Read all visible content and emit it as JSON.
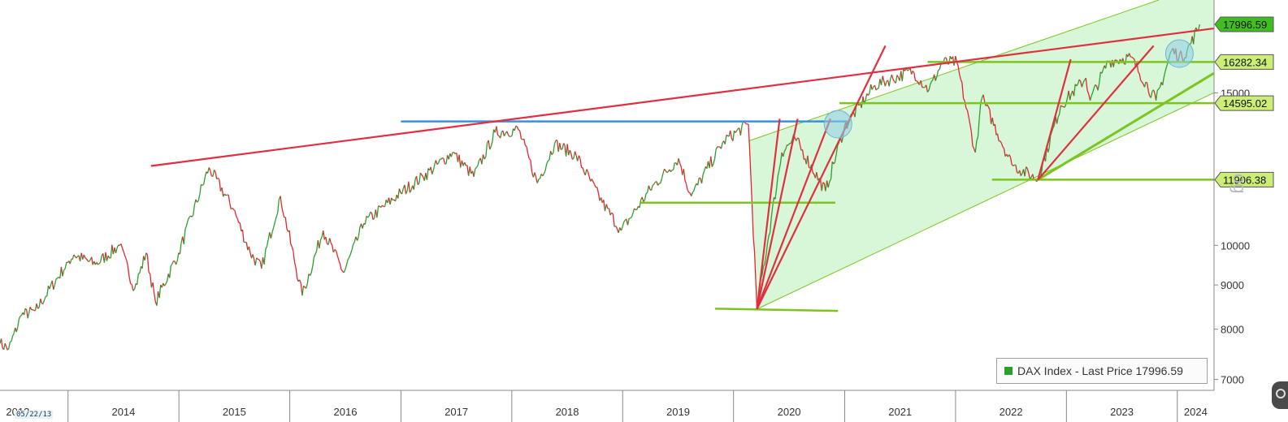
{
  "chart_data": {
    "type": "line",
    "title": "",
    "series": [
      {
        "name": "DAX Index - Last Price",
        "last_value": 17996.59,
        "points": [
          [
            "2013-05-22",
            7700
          ],
          [
            "2013-06-20",
            7600
          ],
          [
            "2013-08-01",
            8300
          ],
          [
            "2013-09-15",
            8400
          ],
          [
            "2013-12-31",
            9550
          ],
          [
            "2014-01-20",
            9750
          ],
          [
            "2014-04-01",
            9500
          ],
          [
            "2014-06-20",
            10000
          ],
          [
            "2014-08-08",
            8900
          ],
          [
            "2014-09-15",
            9800
          ],
          [
            "2014-10-16",
            8600
          ],
          [
            "2014-12-31",
            9800
          ],
          [
            "2015-04-10",
            12300
          ],
          [
            "2015-06-30",
            11000
          ],
          [
            "2015-08-24",
            9800
          ],
          [
            "2015-09-30",
            9400
          ],
          [
            "2015-12-01",
            11400
          ],
          [
            "2016-02-11",
            8750
          ],
          [
            "2016-04-20",
            10400
          ],
          [
            "2016-06-27",
            9300
          ],
          [
            "2016-09-01",
            10600
          ],
          [
            "2016-12-31",
            11500
          ],
          [
            "2017-03-15",
            12000
          ],
          [
            "2017-06-20",
            12800
          ],
          [
            "2017-08-29",
            12000
          ],
          [
            "2017-11-07",
            13500
          ],
          [
            "2018-01-23",
            13600
          ],
          [
            "2018-03-26",
            11800
          ],
          [
            "2018-05-22",
            13100
          ],
          [
            "2018-08-01",
            12700
          ],
          [
            "2018-10-26",
            11200
          ],
          [
            "2018-12-27",
            10400
          ],
          [
            "2019-04-01",
            11600
          ],
          [
            "2019-07-04",
            12600
          ],
          [
            "2019-08-15",
            11400
          ],
          [
            "2019-11-30",
            13200
          ],
          [
            "2020-02-19",
            13800
          ],
          [
            "2020-03-18",
            8440
          ],
          [
            "2020-06-08",
            12800
          ],
          [
            "2020-07-21",
            13300
          ],
          [
            "2020-10-30",
            11550
          ],
          [
            "2020-12-31",
            13700
          ],
          [
            "2021-04-10",
            15300
          ],
          [
            "2021-08-13",
            15900
          ],
          [
            "2021-10-05",
            15100
          ],
          [
            "2021-11-18",
            16250
          ],
          [
            "2022-01-05",
            16280
          ],
          [
            "2022-03-07",
            12800
          ],
          [
            "2022-03-29",
            14800
          ],
          [
            "2022-07-05",
            12400
          ],
          [
            "2022-09-29",
            11900
          ],
          [
            "2022-12-13",
            14500
          ],
          [
            "2023-03-06",
            15600
          ],
          [
            "2023-03-20",
            14700
          ],
          [
            "2023-05-19",
            16300
          ],
          [
            "2023-07-31",
            16500
          ],
          [
            "2023-10-23",
            14700
          ],
          [
            "2023-12-14",
            16800
          ],
          [
            "2024-01-17",
            16450
          ],
          [
            "2024-02-15",
            17100
          ],
          [
            "2024-03-15",
            17996.59
          ]
        ]
      }
    ],
    "x_ticks": [
      "2014",
      "2015",
      "2016",
      "2017",
      "2018",
      "2019",
      "2020",
      "2021",
      "2022",
      "2023",
      "2024"
    ],
    "y_ticks": [
      7000,
      8000,
      9000,
      10000,
      15000
    ],
    "y_scale": "log",
    "ylim": [
      6800,
      19200
    ],
    "xlim": [
      "2013-05-22",
      "2024-05-01"
    ],
    "start_date_label": "05/22/13",
    "price_tags": [
      {
        "value": 17996.59,
        "label": "17996.59",
        "style": "dark"
      },
      {
        "value": 16282.34,
        "label": "16282.34",
        "style": "light"
      },
      {
        "value": 14595.02,
        "label": "14595.02",
        "style": "light"
      },
      {
        "value": 11906.38,
        "label": "11906.38",
        "style": "light"
      }
    ],
    "annotations": {
      "red_resistance": [
        [
          "2014-10-01",
          12350
        ],
        [
          "2024-04-30",
          17800
        ]
      ],
      "blue_horizontal": [
        [
          "2017-01-01",
          13900
        ],
        [
          "2021-01-10",
          13900
        ]
      ],
      "green_horizontals": [
        [
          [
            "2019-03-01",
            11200
          ],
          [
            "2020-12-01",
            11200
          ]
        ],
        [
          [
            "2019-11-01",
            8450
          ],
          [
            "2020-12-10",
            8400
          ]
        ],
        [
          [
            "2021-10-01",
            16282.34
          ],
          [
            "2024-04-30",
            16282.34
          ]
        ],
        [
          [
            "2020-12-15",
            14595.02
          ],
          [
            "2024-04-30",
            14595.02
          ]
        ],
        [
          [
            "2022-05-01",
            11906.38
          ],
          [
            "2024-04-30",
            11906.38
          ]
        ]
      ],
      "channel_upper": [
        [
          "2020-02-20",
          13200
        ],
        [
          "2023-11-01",
          19200
        ]
      ],
      "channel_lower": [
        [
          "2020-03-18",
          8440
        ],
        [
          "2024-04-30",
          15000
        ]
      ],
      "red_fans": [
        [
          [
            "2020-03-18",
            8440
          ],
          [
            "2020-06-01",
            14000
          ]
        ],
        [
          [
            "2020-03-18",
            8440
          ],
          [
            "2020-07-30",
            14000
          ]
        ],
        [
          [
            "2020-03-18",
            8440
          ],
          [
            "2020-11-15",
            14000
          ]
        ],
        [
          [
            "2020-03-18",
            8440
          ],
          [
            "2021-05-15",
            17000
          ]
        ],
        [
          [
            "2022-09-29",
            11900
          ],
          [
            "2023-01-15",
            16400
          ]
        ],
        [
          [
            "2022-09-29",
            11900
          ],
          [
            "2023-10-15",
            17000
          ]
        ]
      ],
      "green_support": [
        [
          "2022-09-29",
          11906.38
        ],
        [
          "2024-04-30",
          15800
        ]
      ],
      "circles": [
        [
          "2020-12-10",
          13800
        ],
        [
          "2024-01-08",
          16650
        ]
      ]
    }
  },
  "legend": {
    "label": "DAX Index - Last Price 17996.59",
    "color": "#2ca02c"
  },
  "colors": {
    "up": "#2ca02c",
    "down": "#e8232f",
    "resistance": "#e03040",
    "blue": "#3a8fe0",
    "support": "#7cc520",
    "fill": "#b8f0b8",
    "tag_dark": "#3fbf1f",
    "tag_light": "#ccee77"
  },
  "side_label": "og"
}
